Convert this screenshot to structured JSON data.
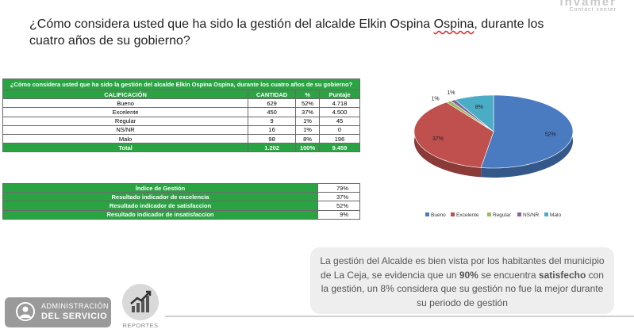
{
  "brand": {
    "name": "Invamer",
    "tagline": "Contact center"
  },
  "question": {
    "text_before": "¿Cómo considera usted que ha sido la gestión del alcalde Elkin Ospina ",
    "text_wavy": "Ospina",
    "text_after": ", durante los cuatro años de su gobierno?"
  },
  "table": {
    "title": "¿Cómo considera usted que ha sido la gestión del alcalde Elkin Ospina Ospina, durante los cuatro años de su gobierno?",
    "headers": {
      "calificacion": "CALIFICACIÓN",
      "cantidad": "CANTIDAD",
      "pct": "%",
      "puntaje": "Puntaje"
    },
    "rows": [
      {
        "calificacion": "Bueno",
        "cantidad": "629",
        "pct": "52%",
        "puntaje": "4.718"
      },
      {
        "calificacion": "Excelente",
        "cantidad": "450",
        "pct": "37%",
        "puntaje": "4.500"
      },
      {
        "calificacion": "Regular",
        "cantidad": "9",
        "pct": "1%",
        "puntaje": "45"
      },
      {
        "calificacion": "NS/NR",
        "cantidad": "16",
        "pct": "1%",
        "puntaje": "0"
      },
      {
        "calificacion": "Malo",
        "cantidad": "98",
        "pct": "8%",
        "puntaje": "196"
      }
    ],
    "total": {
      "label": "Total",
      "cantidad": "1.202",
      "pct": "100%",
      "puntaje": "9.459"
    }
  },
  "indicators": [
    {
      "label": "Índice de Gestión",
      "value": "79%"
    },
    {
      "label": "Resultado indicador de excelencia",
      "value": "37%"
    },
    {
      "label": "Resultado indicador de satisfaccion",
      "value": "52%"
    },
    {
      "label": "Resultado indicador de insatisfaccion",
      "value": "9%"
    }
  ],
  "chart_data": {
    "type": "pie",
    "style": "3d",
    "slices": [
      {
        "name": "Bueno",
        "value": 52,
        "label": "52%",
        "color": "#4a7ac0"
      },
      {
        "name": "Excelente",
        "value": 37,
        "label": "37%",
        "color": "#c0504d"
      },
      {
        "name": "Regular",
        "value": 1,
        "label": "1%",
        "color": "#9bbb59"
      },
      {
        "name": "NS/NR",
        "value": 1,
        "label": "1%",
        "color": "#8064a2"
      },
      {
        "name": "Malo",
        "value": 8,
        "label": "8%",
        "color": "#4bacc6"
      }
    ],
    "legend_position": "bottom"
  },
  "note": {
    "part1": "La gestión del Alcalde es bien vista por los habitantes del municipio de La Ceja, se evidencia que un ",
    "bold1": "90%",
    "part2": " se encuentra ",
    "bold2": "satisfecho",
    "part3": " con la gestión, un 8% considera que su gestión no fue la mejor durante su periodo de gestión"
  },
  "footer": {
    "admin_line1": "ADMINISTRACIÓN",
    "admin_line2": "DEL SERVICIO",
    "reportes": "REPORTES"
  }
}
